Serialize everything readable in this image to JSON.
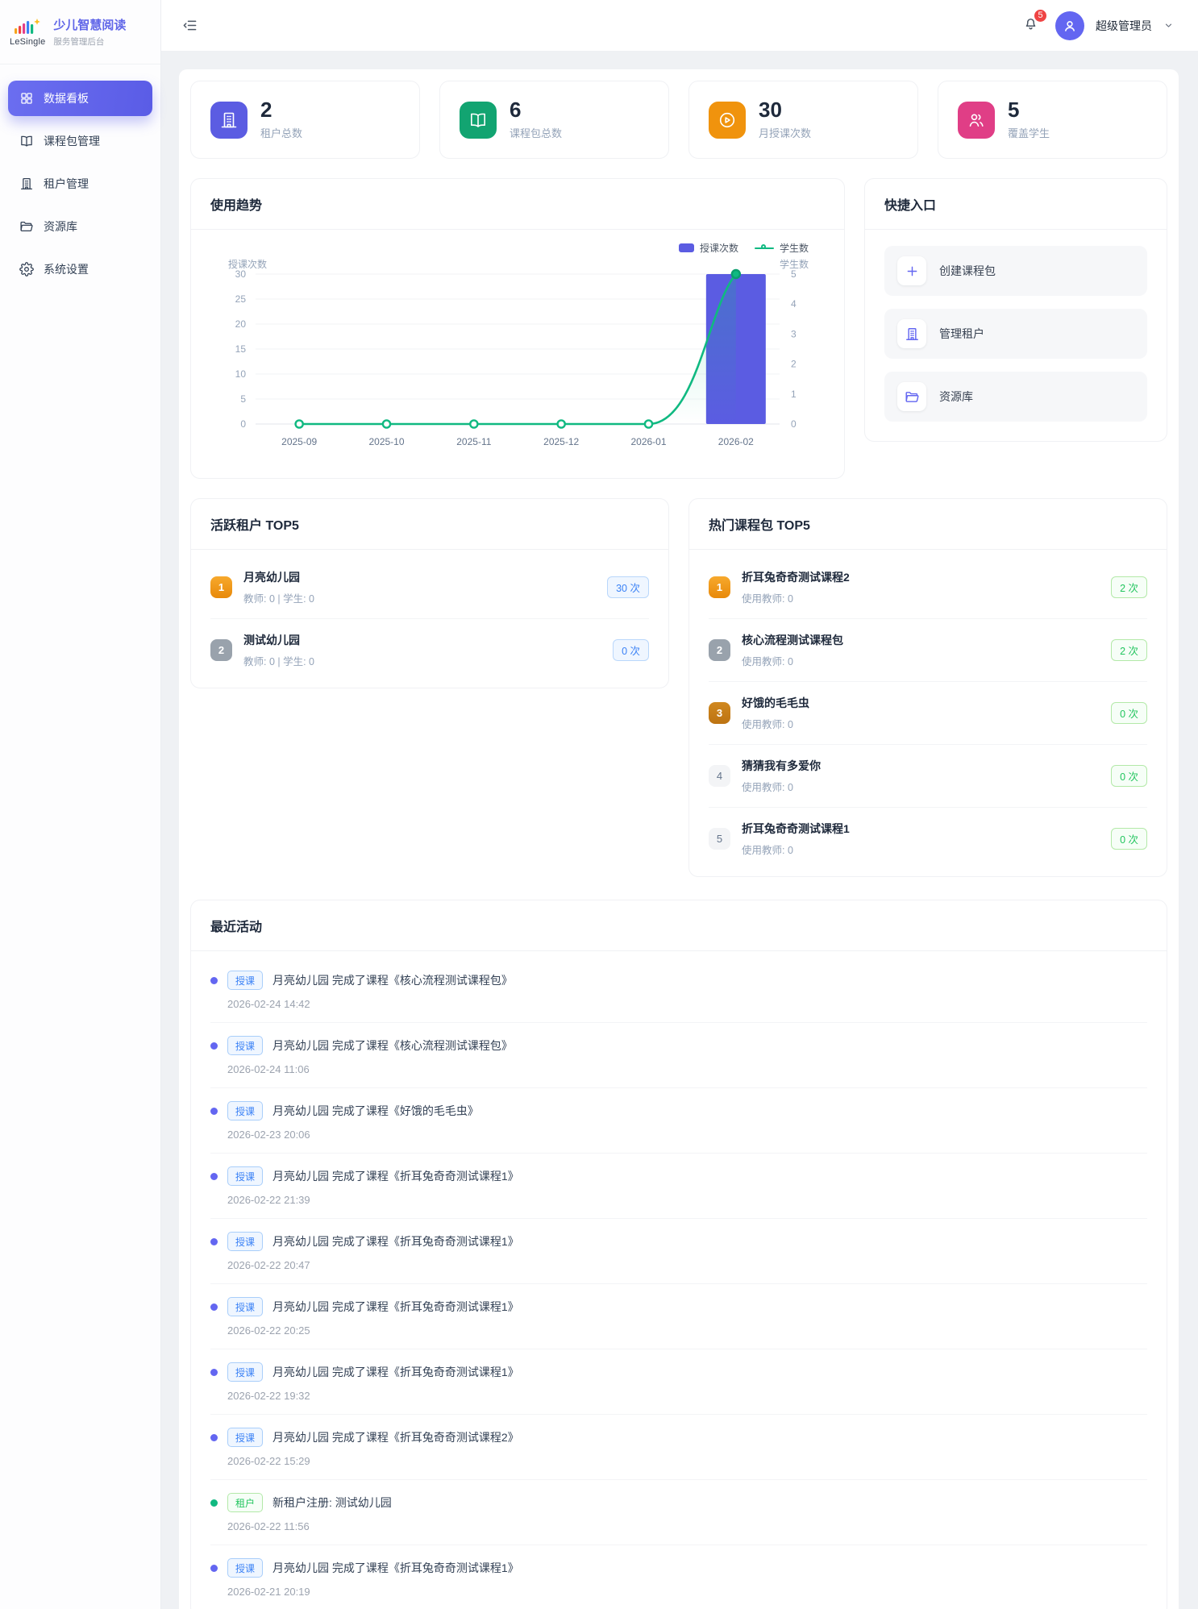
{
  "sidebar": {
    "logo_text": "LeSingle",
    "app_title": "少儿智慧阅读",
    "app_subtitle": "服务管理后台",
    "items": [
      {
        "id": "dashboard",
        "label": "数据看板",
        "icon": "grid-icon",
        "active": true
      },
      {
        "id": "course-packages",
        "label": "课程包管理",
        "icon": "book-icon",
        "active": false
      },
      {
        "id": "tenants",
        "label": "租户管理",
        "icon": "building-icon",
        "active": false
      },
      {
        "id": "resources",
        "label": "资源库",
        "icon": "folder-icon",
        "active": false
      },
      {
        "id": "settings",
        "label": "系统设置",
        "icon": "gear-icon",
        "active": false
      }
    ]
  },
  "header": {
    "collapse_icon": "menu-fold-icon",
    "bell_icon": "bell-icon",
    "notification_count": "5",
    "avatar_icon": "person-icon",
    "user_name": "超级管理员",
    "chevron_icon": "chevron-down-icon"
  },
  "stats": [
    {
      "value": "2",
      "label": "租户总数",
      "icon": "building-icon",
      "color": "#5b5ce2"
    },
    {
      "value": "6",
      "label": "课程包总数",
      "icon": "book-icon",
      "color": "#12a471"
    },
    {
      "value": "30",
      "label": "月授课次数",
      "icon": "play-circle-icon",
      "color": "#f0930d"
    },
    {
      "value": "5",
      "label": "覆盖学生",
      "icon": "people-icon",
      "color": "#e03e86"
    }
  ],
  "trend": {
    "title": "使用趋势"
  },
  "chart_data": {
    "type": "bar+line",
    "title": "使用趋势",
    "categories": [
      "2025-09",
      "2025-10",
      "2025-11",
      "2025-12",
      "2026-01",
      "2026-02"
    ],
    "series": [
      {
        "name": "授课次数",
        "type": "bar",
        "axis": "left",
        "color": "#5b5ce2",
        "values": [
          0,
          0,
          0,
          0,
          0,
          30
        ]
      },
      {
        "name": "学生数",
        "type": "line",
        "axis": "right",
        "color": "#10b981",
        "values": [
          0,
          0,
          0,
          0,
          0,
          5
        ]
      }
    ],
    "left_axis": {
      "label": "授课次数",
      "min": 0,
      "max": 30,
      "ticks": [
        0,
        5,
        10,
        15,
        20,
        25,
        30
      ]
    },
    "right_axis": {
      "label": "学生数",
      "min": 0,
      "max": 5,
      "ticks": [
        0,
        1,
        2,
        3,
        4,
        5
      ]
    },
    "legend_position": "top-right",
    "grid": true
  },
  "quick": {
    "title": "快捷入口",
    "items": [
      {
        "id": "create-package",
        "label": "创建课程包",
        "icon": "plus-icon"
      },
      {
        "id": "manage-tenants",
        "label": "管理租户",
        "icon": "building-icon"
      },
      {
        "id": "resources",
        "label": "资源库",
        "icon": "folder-icon"
      }
    ]
  },
  "active_tenants": {
    "title": "活跃租户 TOP5",
    "badge_style": "blue",
    "items": [
      {
        "rank": "1",
        "name": "月亮幼儿园",
        "meta": "教师: 0 | 学生: 0",
        "count": "30 次"
      },
      {
        "rank": "2",
        "name": "测试幼儿园",
        "meta": "教师: 0 | 学生: 0",
        "count": "0 次"
      }
    ]
  },
  "hot_packages": {
    "title": "热门课程包 TOP5",
    "badge_style": "green",
    "items": [
      {
        "rank": "1",
        "name": "折耳兔奇奇测试课程2",
        "meta": "使用教师: 0",
        "count": "2 次"
      },
      {
        "rank": "2",
        "name": "核心流程测试课程包",
        "meta": "使用教师: 0",
        "count": "2 次"
      },
      {
        "rank": "3",
        "name": "好饿的毛毛虫",
        "meta": "使用教师: 0",
        "count": "0 次"
      },
      {
        "rank": "4",
        "name": "猜猜我有多爱你",
        "meta": "使用教师: 0",
        "count": "0 次"
      },
      {
        "rank": "5",
        "name": "折耳兔奇奇测试课程1",
        "meta": "使用教师: 0",
        "count": "0 次"
      }
    ]
  },
  "activities": {
    "title": "最近活动",
    "items": [
      {
        "badge": "授课",
        "variant": "lesson",
        "text": "月亮幼儿园 完成了课程《核心流程测试课程包》",
        "time": "2026-02-24 14:42"
      },
      {
        "badge": "授课",
        "variant": "lesson",
        "text": "月亮幼儿园 完成了课程《核心流程测试课程包》",
        "time": "2026-02-24 11:06"
      },
      {
        "badge": "授课",
        "variant": "lesson",
        "text": "月亮幼儿园 完成了课程《好饿的毛毛虫》",
        "time": "2026-02-23 20:06"
      },
      {
        "badge": "授课",
        "variant": "lesson",
        "text": "月亮幼儿园 完成了课程《折耳兔奇奇测试课程1》",
        "time": "2026-02-22 21:39"
      },
      {
        "badge": "授课",
        "variant": "lesson",
        "text": "月亮幼儿园 完成了课程《折耳兔奇奇测试课程1》",
        "time": "2026-02-22 20:47"
      },
      {
        "badge": "授课",
        "variant": "lesson",
        "text": "月亮幼儿园 完成了课程《折耳兔奇奇测试课程1》",
        "time": "2026-02-22 20:25"
      },
      {
        "badge": "授课",
        "variant": "lesson",
        "text": "月亮幼儿园 完成了课程《折耳兔奇奇测试课程1》",
        "time": "2026-02-22 19:32"
      },
      {
        "badge": "授课",
        "variant": "lesson",
        "text": "月亮幼儿园 完成了课程《折耳兔奇奇测试课程2》",
        "time": "2026-02-22 15:29"
      },
      {
        "badge": "租户",
        "variant": "tenant",
        "text": "新租户注册: 测试幼儿园",
        "time": "2026-02-22 11:56"
      },
      {
        "badge": "授课",
        "variant": "lesson",
        "text": "月亮幼儿园 完成了课程《折耳兔奇奇测试课程1》",
        "time": "2026-02-21 20:19"
      }
    ]
  },
  "colors": {
    "primary": "#5b5ce2",
    "green": "#10b981",
    "orange": "#f0930d",
    "pink": "#e03e86",
    "blue": "#3b82f6",
    "badge_red": "#ef4444",
    "rank_gold": "#ee9a16",
    "rank_silver": "#99a2ac",
    "rank_bronze": "#c87d1a"
  }
}
